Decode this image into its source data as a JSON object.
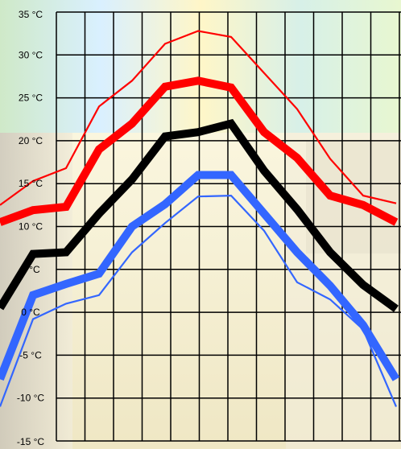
{
  "chart_data": {
    "type": "line",
    "title": "",
    "xlabel": "",
    "ylabel": "",
    "x": [
      1,
      2,
      3,
      4,
      5,
      6,
      7,
      8,
      9,
      10,
      11,
      12,
      13
    ],
    "ylim": [
      -15,
      35
    ],
    "ytick_labels": [
      "35 °C",
      "30 °C",
      "25 °C",
      "20 °C",
      "15 °C",
      "10 °C",
      "5 °C",
      "0 °C",
      "-5 °C",
      "-10 °C",
      "-15 °C"
    ],
    "ytick_values": [
      35,
      30,
      25,
      20,
      15,
      10,
      5,
      0,
      -5,
      -10,
      -15
    ],
    "grid": true,
    "legend": "none",
    "series": [
      {
        "color": "#ff0000",
        "style": "thin",
        "values": [
          12.5,
          15.3,
          16.8,
          24.0,
          27.0,
          31.3,
          32.8,
          32.1,
          27.9,
          23.7,
          17.9,
          13.6,
          12.7
        ]
      },
      {
        "color": "#ff0000",
        "style": "thick",
        "values": [
          10.5,
          11.9,
          12.3,
          19.0,
          22.0,
          26.3,
          27.0,
          26.2,
          21.0,
          18.0,
          13.6,
          12.5,
          10.5
        ]
      },
      {
        "color": "#000000",
        "style": "thick",
        "values": [
          0.5,
          6.8,
          7.0,
          11.5,
          15.5,
          20.5,
          21.0,
          22.0,
          16.5,
          12.0,
          7.0,
          3.2,
          0.4
        ]
      },
      {
        "color": "#3366ff",
        "style": "thick",
        "values": [
          -7.8,
          2.0,
          3.3,
          4.5,
          10.0,
          12.6,
          16.0,
          16.0,
          11.5,
          7.0,
          3.1,
          -1.5,
          -7.8
        ]
      },
      {
        "color": "#3366ff",
        "style": "thin",
        "values": [
          -11.0,
          -0.8,
          1.0,
          2.0,
          7.0,
          10.4,
          13.5,
          13.6,
          9.5,
          3.5,
          1.5,
          -2.0,
          -11.0
        ]
      }
    ]
  }
}
